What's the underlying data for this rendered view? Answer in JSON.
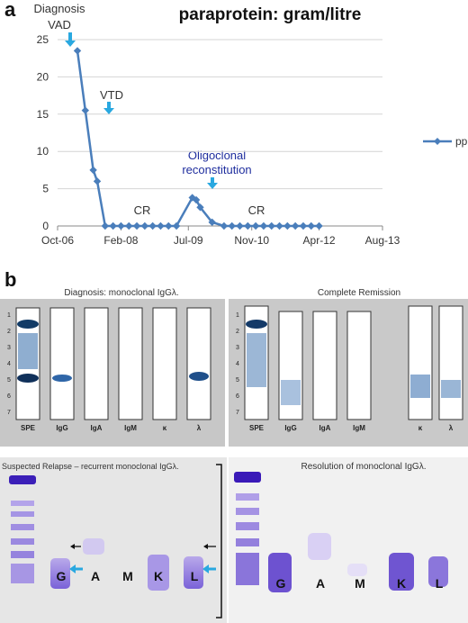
{
  "panel_a": {
    "letter": "a",
    "title": "paraprotein: gram/litre",
    "annotations": {
      "diagnosis": "Diagnosis",
      "vad": "VAD",
      "vtd": "VTD",
      "cr1": "CR",
      "oligo1": "Oligoclonal",
      "oligo2": "reconstitution",
      "cr2": "CR"
    },
    "colors": {
      "series": "#4a7ebb",
      "arrow": "#29a8e0",
      "oligo": "#1f2e9e",
      "axis": "#888888"
    }
  },
  "chart_data": {
    "type": "line",
    "title": "paraprotein: gram/litre",
    "xlabel": "",
    "ylabel": "",
    "x_ticks": [
      "Oct-06",
      "Feb-08",
      "Jul-09",
      "Nov-10",
      "Apr-12",
      "Aug-13"
    ],
    "x_tick_values": [
      0,
      16,
      33,
      49,
      66,
      82
    ],
    "xlim": [
      0,
      82
    ],
    "ylim": [
      0,
      25
    ],
    "y_ticks": [
      0,
      5,
      10,
      15,
      20,
      25
    ],
    "grid": true,
    "legend": "right",
    "series": [
      {
        "name": "pp",
        "marker": "diamond",
        "color": "#4a7ebb",
        "x": [
          5,
          7,
          9,
          10,
          12,
          14,
          16,
          18,
          20,
          22,
          24,
          26,
          28,
          30,
          34,
          35,
          36,
          39,
          42,
          44,
          46,
          48,
          50,
          52,
          54,
          56,
          58,
          60,
          62,
          64,
          66
        ],
        "y": [
          23.5,
          15.5,
          7.5,
          6,
          0,
          0,
          0,
          0,
          0,
          0,
          0,
          0,
          0,
          0,
          3.8,
          3.5,
          2.5,
          0.5,
          0,
          0,
          0,
          0,
          0,
          0,
          0,
          0,
          0,
          0,
          0,
          0,
          0
        ]
      }
    ]
  },
  "panel_b": {
    "letter": "b",
    "gel1": {
      "caption": "Diagnosis: monoclonal IgGλ.",
      "lanes": [
        "SPE",
        "IgG",
        "IgA",
        "IgM",
        "κ",
        "λ"
      ],
      "ladder": [
        "1",
        "2",
        "3",
        "4",
        "5",
        "6",
        "7"
      ]
    },
    "gel2": {
      "caption": "Complete Remission",
      "lanes": [
        "SPE",
        "IgG",
        "IgA",
        "IgM",
        "κ",
        "λ"
      ],
      "ladder": [
        "1",
        "2",
        "3",
        "4",
        "5",
        "6",
        "7"
      ]
    },
    "gel3": {
      "caption": "Suspected Relapse – recurrent monoclonal IgGλ.",
      "lanes": [
        "G",
        "A",
        "M",
        "K",
        "L"
      ]
    },
    "gel4": {
      "caption": "Resolution of monoclonal IgGλ.",
      "lanes": [
        "G",
        "A",
        "M",
        "K",
        "L"
      ]
    }
  }
}
